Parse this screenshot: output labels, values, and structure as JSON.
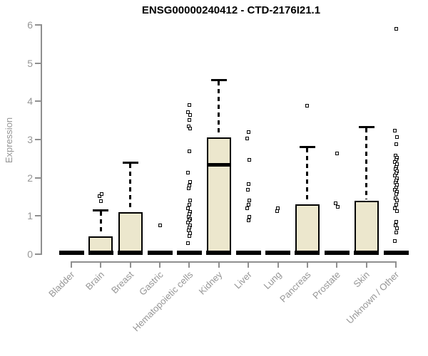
{
  "chart_title": "ENSG00000240412 - CTD-2176I21.1",
  "y_axis_label": "Expression",
  "colors": {
    "box_fill": "#ECE7CD",
    "box_border": "#000000",
    "median": "#000000",
    "axis": "#8F8F8F",
    "tick_text": "#969696",
    "title_text": "#000000",
    "outlier_fill": "#FFFFFF"
  },
  "chart_data": {
    "type": "boxplot",
    "title": "ENSG00000240412 - CTD-2176I21.1",
    "ylabel": "Expression",
    "xlabel": "",
    "ylim": [
      0,
      6
    ],
    "yticks": [
      0,
      1,
      2,
      3,
      4,
      5,
      6
    ],
    "grid": false,
    "legend": false,
    "categories": [
      "Bladder",
      "Brain",
      "Breast",
      "Gastric",
      "Hematopoietic cells",
      "Kidney",
      "Liver",
      "Lung",
      "Pancreas",
      "Prostate",
      "Skin",
      "Unknown / Other"
    ],
    "series": [
      {
        "category": "Bladder",
        "q1": 0,
        "median": 0,
        "q3": 0,
        "whisker_low": 0,
        "whisker_high": 0,
        "outliers": []
      },
      {
        "category": "Brain",
        "q1": 0,
        "median": 0.02,
        "q3": 0.47,
        "whisker_low": 0,
        "whisker_high": 1.15,
        "outliers": [
          1.38,
          1.52,
          1.58
        ]
      },
      {
        "category": "Breast",
        "q1": 0,
        "median": 0.02,
        "q3": 1.1,
        "whisker_low": 0,
        "whisker_high": 2.4,
        "outliers": []
      },
      {
        "category": "Gastric",
        "q1": 0,
        "median": 0,
        "q3": 0,
        "whisker_low": 0,
        "whisker_high": 0,
        "outliers": [
          0.75
        ]
      },
      {
        "category": "Hematopoietic cells",
        "q1": 0,
        "median": 0,
        "q3": 0,
        "whisker_low": 0,
        "whisker_high": 0,
        "outliers": [
          3.91,
          3.72,
          3.65,
          3.52,
          3.35,
          3.28,
          2.7,
          2.14,
          1.9,
          1.8,
          1.72,
          1.4,
          1.3,
          1.21,
          1.1,
          1.05,
          0.98,
          0.93,
          0.88,
          0.82,
          0.76,
          0.7,
          0.63,
          0.55,
          0.47,
          0.28
        ]
      },
      {
        "category": "Kidney",
        "q1": 0,
        "median": 2.33,
        "q3": 3.05,
        "whisker_low": 0,
        "whisker_high": 4.57,
        "outliers": []
      },
      {
        "category": "Liver",
        "q1": 0,
        "median": 0,
        "q3": 0,
        "whisker_low": 0,
        "whisker_high": 0,
        "outliers": [
          3.2,
          3.02,
          2.46,
          1.84,
          1.68,
          1.4,
          1.3,
          1.21,
          0.97,
          0.88
        ]
      },
      {
        "category": "Lung",
        "q1": 0,
        "median": 0,
        "q3": 0,
        "whisker_low": 0,
        "whisker_high": 0,
        "outliers": [
          1.21,
          1.12
        ]
      },
      {
        "category": "Pancreas",
        "q1": 0,
        "median": 0.02,
        "q3": 1.3,
        "whisker_low": 0,
        "whisker_high": 2.81,
        "outliers": [
          3.89
        ]
      },
      {
        "category": "Prostate",
        "q1": 0,
        "median": 0,
        "q3": 0,
        "whisker_low": 0,
        "whisker_high": 0,
        "outliers": [
          2.63,
          1.34,
          1.24
        ]
      },
      {
        "category": "Skin",
        "q1": 0,
        "median": 0.02,
        "q3": 1.4,
        "whisker_low": 0,
        "whisker_high": 3.33,
        "outliers": []
      },
      {
        "category": "Unknown / Other",
        "q1": 0,
        "median": 0,
        "q3": 0,
        "whisker_low": 0,
        "whisker_high": 0,
        "outliers": [
          5.9,
          3.24,
          3.06,
          2.87,
          2.59,
          2.53,
          2.47,
          2.41,
          2.35,
          2.29,
          2.23,
          2.17,
          2.11,
          2.05,
          1.99,
          1.93,
          1.87,
          1.81,
          1.75,
          1.69,
          1.63,
          1.57,
          1.47,
          1.4,
          1.29,
          1.21,
          1.12,
          0.84,
          0.75,
          0.68,
          0.56,
          0.35
        ]
      }
    ]
  }
}
